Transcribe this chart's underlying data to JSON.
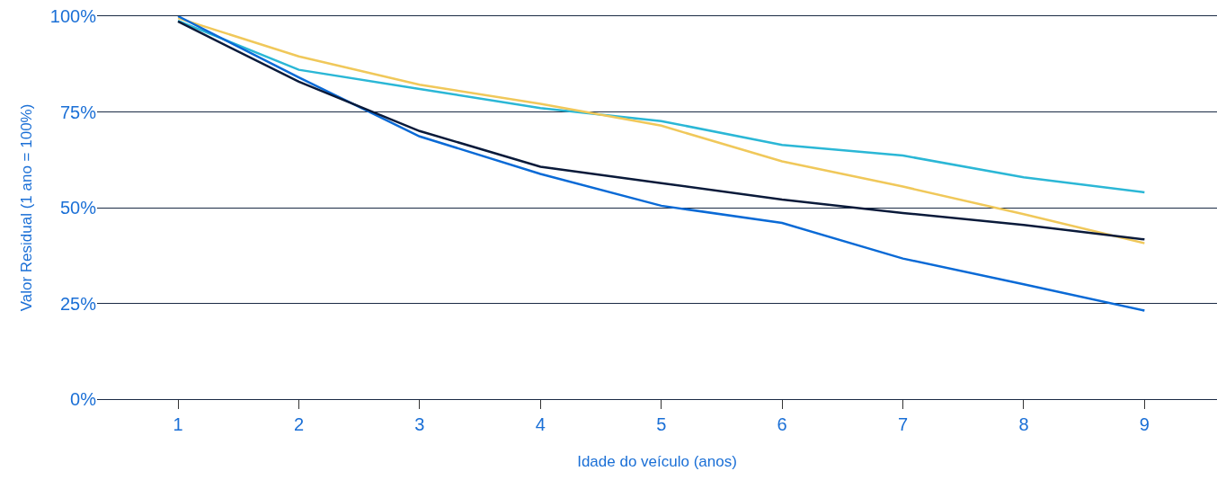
{
  "chart_data": {
    "type": "line",
    "xlabel": "Idade do veículo (anos)",
    "ylabel": "Valor Residual (1 ano = 100%)",
    "x": [
      1,
      2,
      3,
      4,
      5,
      6,
      7,
      8,
      9
    ],
    "series": [
      {
        "color": "#2bb7d6",
        "values": [
          98.8,
          86,
          81,
          76,
          72.6,
          66.4,
          63.6,
          57.9,
          54
        ]
      },
      {
        "color": "#f0c85a",
        "values": [
          99.5,
          89.5,
          82.1,
          77.1,
          71.4,
          62.1,
          55.5,
          48.3,
          40.7
        ]
      },
      {
        "color": "#0a6ad6",
        "values": [
          100,
          84,
          68.6,
          58.8,
          50.5,
          46,
          36.7,
          30,
          23.1
        ]
      },
      {
        "color": "#0a1a3a",
        "values": [
          98.6,
          82.9,
          70,
          60.7,
          56.4,
          52.1,
          48.6,
          45.5,
          41.7
        ]
      }
    ],
    "xlim": [
      0.33,
      9.6
    ],
    "xticks": [
      1,
      2,
      3,
      4,
      5,
      6,
      7,
      8,
      9
    ],
    "ylim": [
      0,
      100
    ],
    "yticks": [
      {
        "value": 0,
        "label": "0%"
      },
      {
        "value": 25,
        "label": "25%"
      },
      {
        "value": 50,
        "label": "50%"
      },
      {
        "value": 75,
        "label": "75%"
      },
      {
        "value": 100,
        "label": "100%"
      }
    ],
    "grid": "y",
    "marker": "none",
    "line_style": "solid"
  }
}
